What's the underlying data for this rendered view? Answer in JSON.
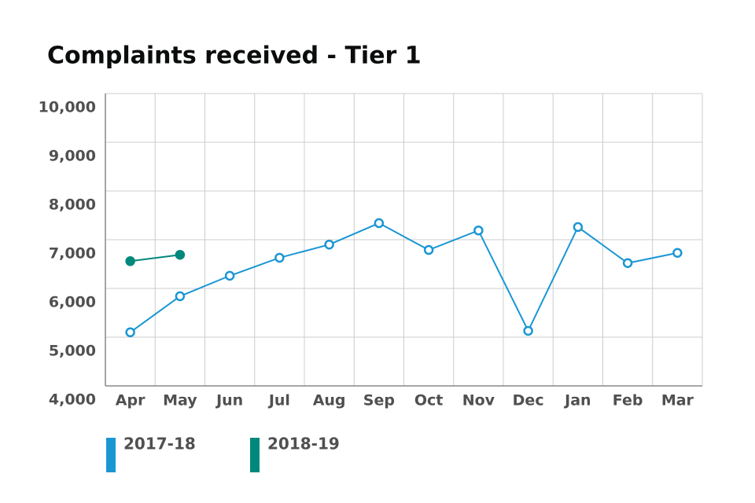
{
  "chart_data": {
    "type": "line",
    "title": "Complaints received - Tier 1",
    "categories": [
      "Apr",
      "May",
      "Jun",
      "Jul",
      "Aug",
      "Sep",
      "Oct",
      "Nov",
      "Dec",
      "Jan",
      "Feb",
      "Mar"
    ],
    "series": [
      {
        "name": "2017-18",
        "color": "#1a96d4",
        "values": [
          5100,
          5840,
          6260,
          6630,
          6900,
          7340,
          6790,
          7190,
          5130,
          7260,
          6520,
          6730
        ]
      },
      {
        "name": "2018-19",
        "color": "#00897b",
        "values": [
          6560,
          6690,
          null,
          null,
          null,
          null,
          null,
          null,
          null,
          null,
          null,
          null
        ]
      }
    ],
    "ylim": [
      4000,
      10000
    ],
    "yticks": [
      {
        "value": 4000,
        "label": "4,000"
      },
      {
        "value": 5000,
        "label": "5,000"
      },
      {
        "value": 6000,
        "label": "6,000"
      },
      {
        "value": 7000,
        "label": "7,000"
      },
      {
        "value": 8000,
        "label": "8,000"
      },
      {
        "value": 9000,
        "label": "9,000"
      },
      {
        "value": 10000,
        "label": "10,000"
      }
    ],
    "grid": true
  }
}
